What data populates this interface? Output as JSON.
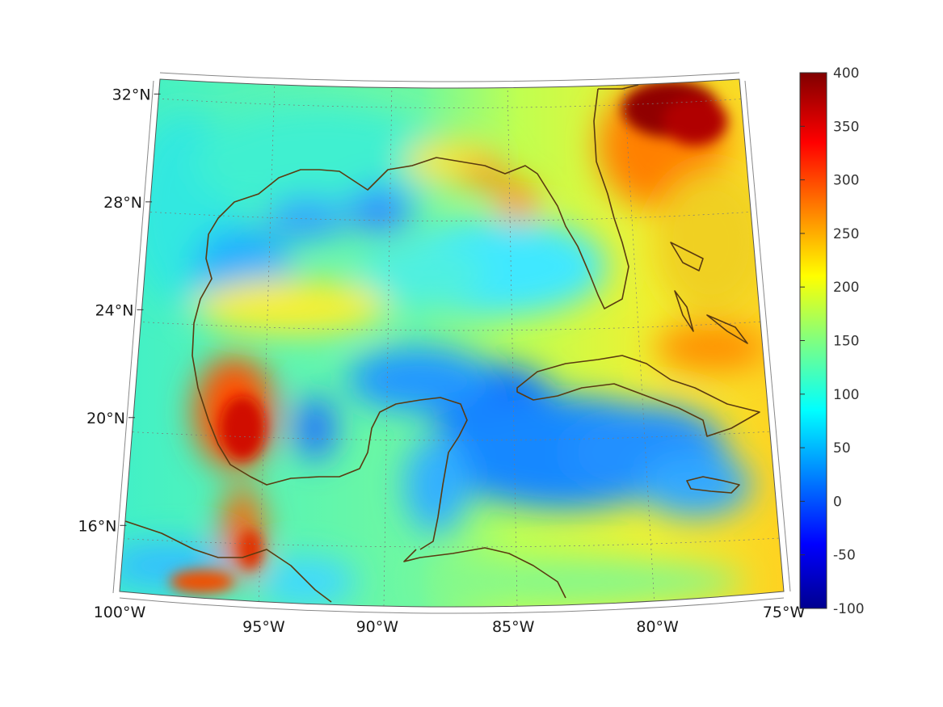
{
  "figure": {
    "type": "filled-map",
    "projection": "conic",
    "grid": true
  },
  "axes": {
    "lon_ticks": [
      {
        "label": "100°W",
        "value": -100
      },
      {
        "label": "95°W",
        "value": -95
      },
      {
        "label": "90°W",
        "value": -90
      },
      {
        "label": "85°W",
        "value": -85
      },
      {
        "label": "80°W",
        "value": -80
      },
      {
        "label": "75°W",
        "value": -75
      }
    ],
    "lat_ticks": [
      {
        "label": "32°N",
        "value": 32
      },
      {
        "label": "28°N",
        "value": 28
      },
      {
        "label": "24°N",
        "value": 24
      },
      {
        "label": "20°N",
        "value": 20
      },
      {
        "label": "16°N",
        "value": 16
      }
    ],
    "lon_range": [
      -100,
      -75
    ],
    "lat_range": [
      14,
      33
    ]
  },
  "colorbar": {
    "colormap": "jet",
    "range": [
      -100,
      400
    ],
    "ticks": [
      "400",
      "350",
      "300",
      "250",
      "200",
      "150",
      "100",
      "50",
      "0",
      "-50",
      "-100"
    ],
    "colors": [
      "#00008f",
      "#0000ff",
      "#0080ff",
      "#00ffff",
      "#80ff80",
      "#ffff00",
      "#ff8000",
      "#ff0000",
      "#800000"
    ]
  },
  "coastline_color": "#5a3a10"
}
